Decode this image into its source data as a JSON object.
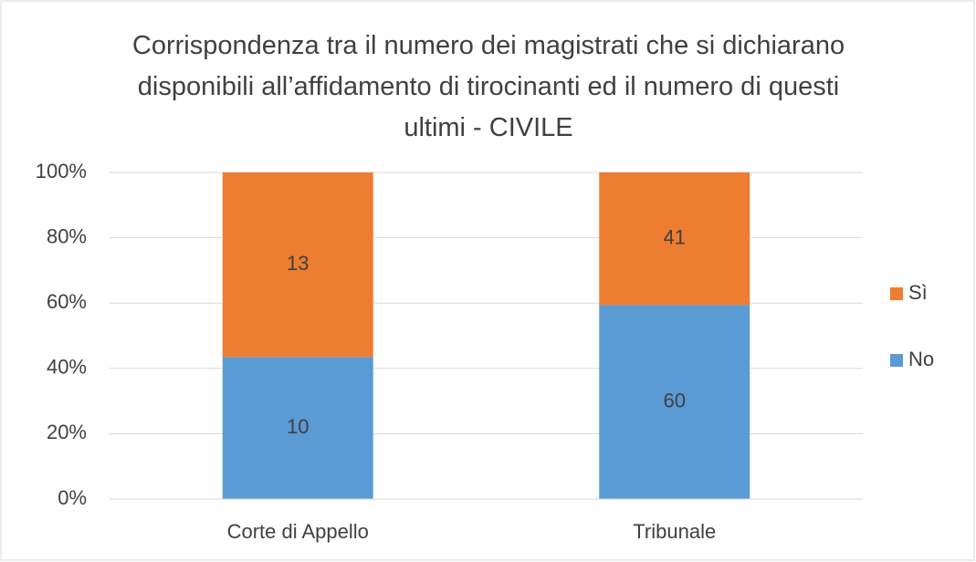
{
  "chart_data": {
    "type": "bar",
    "stack": "percent",
    "title": "Corrispondenza tra il numero dei magistrati che si dichiarano disponibili all’affidamento di tirocinanti ed il numero di questi ultimi - CIVILE",
    "categories": [
      "Corte di Appello",
      "Tribunale"
    ],
    "series": [
      {
        "name": "No",
        "color": "#5b9bd5",
        "values": [
          10,
          60
        ]
      },
      {
        "name": "Sì",
        "color": "#ed7d31",
        "values": [
          13,
          41
        ]
      }
    ],
    "ylim": [
      0,
      100
    ],
    "yticks": [
      {
        "value": 0,
        "label": "0%"
      },
      {
        "value": 20,
        "label": "20%"
      },
      {
        "value": 40,
        "label": "40%"
      },
      {
        "value": 60,
        "label": "60%"
      },
      {
        "value": 80,
        "label": "80%"
      },
      {
        "value": 100,
        "label": "100%"
      }
    ],
    "grid": true,
    "legend": "right"
  }
}
